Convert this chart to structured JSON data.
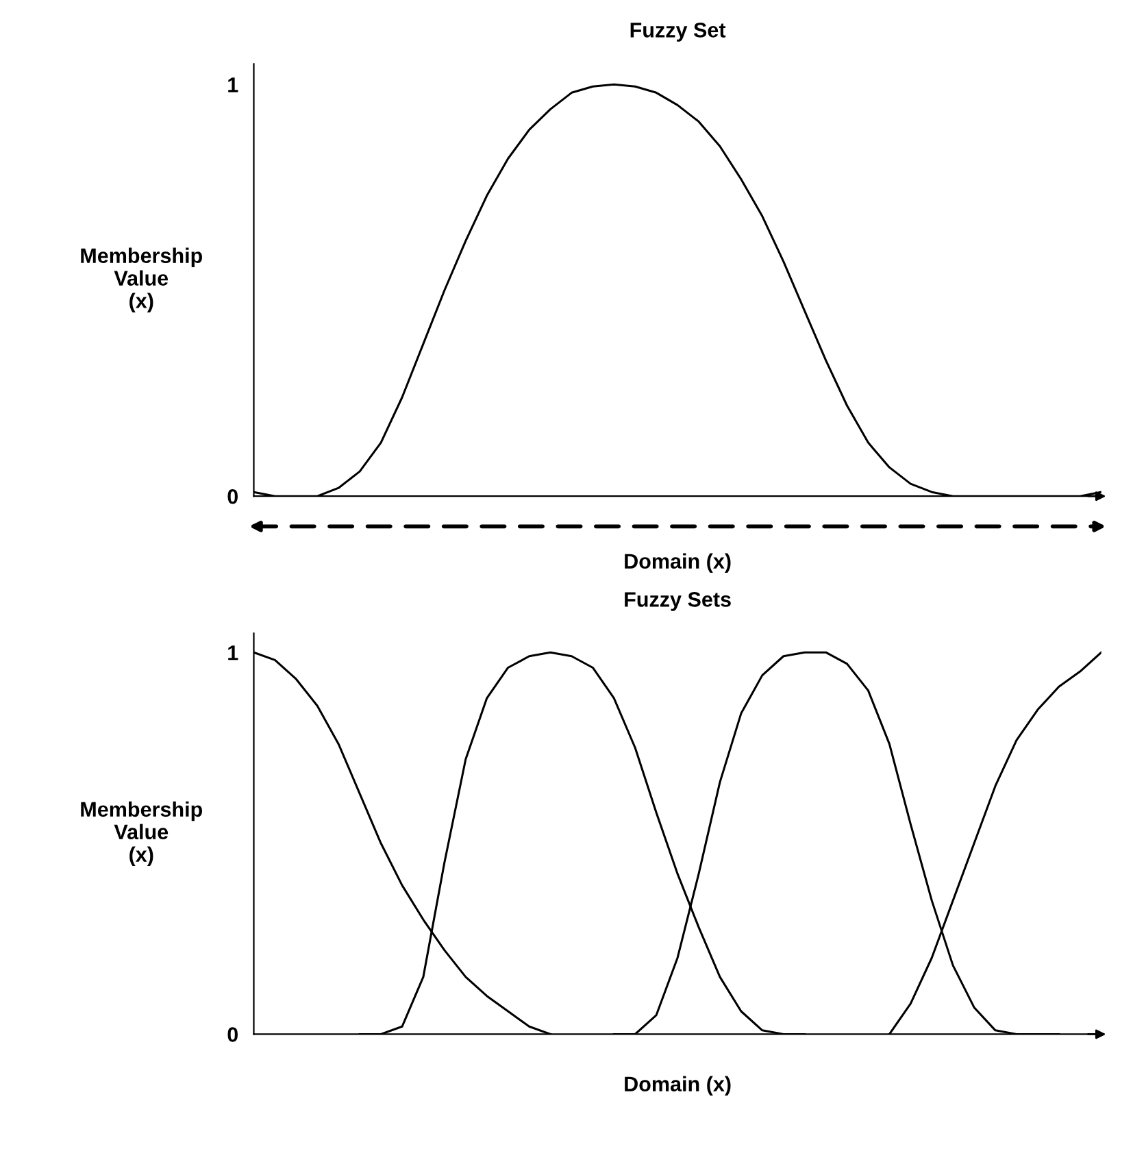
{
  "chart_data": [
    {
      "type": "line",
      "title": "Fuzzy Set",
      "xlabel": "Domain (x)",
      "ylabel": "Membership\nValue\n(x)",
      "categories": [
        null,
        null,
        null,
        null,
        null,
        null,
        null,
        null,
        null,
        null,
        null,
        null,
        null,
        null,
        null,
        null,
        null,
        null,
        null,
        null,
        null,
        null,
        null,
        null,
        null,
        null,
        null,
        null,
        null,
        null,
        null,
        null,
        null,
        null,
        null,
        null,
        null,
        null,
        null,
        null,
        null
      ],
      "ylim": [
        0,
        1.05
      ],
      "yticks": [
        0,
        1
      ],
      "tick_labels": "y",
      "grid": false,
      "series": [
        {
          "color": "#000000",
          "values": [
            0.01,
            0,
            0,
            0,
            0.02,
            0.06,
            0.13,
            0.24,
            0.37,
            0.5,
            0.62,
            0.73,
            0.82,
            0.89,
            0.94,
            0.98,
            0.995,
            1,
            0.995,
            0.98,
            0.95,
            0.91,
            0.85,
            0.77,
            0.68,
            0.57,
            0.45,
            0.33,
            0.22,
            0.13,
            0.07,
            0.03,
            0.01,
            0,
            0,
            0,
            0,
            0,
            0,
            0,
            0.01
          ]
        }
      ]
    },
    {
      "type": "line",
      "title": "Fuzzy Sets",
      "xlabel": "Domain (x)",
      "ylabel": "Membership\nValue\n(x)",
      "categories": [
        null,
        null,
        null,
        null,
        null,
        null,
        null,
        null,
        null,
        null,
        null,
        null,
        null,
        null,
        null,
        null,
        null,
        null,
        null,
        null,
        null,
        null,
        null,
        null,
        null,
        null,
        null,
        null,
        null,
        null,
        null,
        null,
        null,
        null,
        null,
        null,
        null,
        null,
        null,
        null,
        null
      ],
      "ylim": [
        0,
        1.05
      ],
      "yticks": [
        0,
        1
      ],
      "tick_labels": "y",
      "grid": false,
      "series": [
        {
          "color": "#000000",
          "values": [
            1,
            0.98,
            0.93,
            0.86,
            0.76,
            0.63,
            0.5,
            0.39,
            0.3,
            0.22,
            0.15,
            0.1,
            0.06,
            0.02,
            0,
            null,
            null,
            null,
            null,
            null,
            null,
            null,
            null,
            null,
            null,
            null,
            null,
            null,
            null,
            null,
            null,
            null,
            null,
            null,
            null,
            null,
            null,
            null,
            null,
            null,
            null
          ]
        },
        {
          "color": "#000000",
          "values": [
            null,
            null,
            null,
            null,
            null,
            0,
            0,
            0.02,
            0.15,
            0.45,
            0.72,
            0.88,
            0.96,
            0.99,
            1,
            0.99,
            0.96,
            0.88,
            0.75,
            0.58,
            0.42,
            0.28,
            0.15,
            0.06,
            0.01,
            0,
            0,
            null,
            null,
            null,
            null,
            null,
            null,
            null,
            null,
            null,
            null,
            null,
            null,
            null,
            null
          ]
        },
        {
          "color": "#000000",
          "values": [
            null,
            null,
            null,
            null,
            null,
            null,
            null,
            null,
            null,
            null,
            null,
            null,
            null,
            null,
            null,
            null,
            null,
            0,
            0,
            0.05,
            0.2,
            0.42,
            0.66,
            0.84,
            0.94,
            0.99,
            1,
            1,
            0.97,
            0.9,
            0.76,
            0.55,
            0.35,
            0.18,
            0.07,
            0.01,
            0,
            0,
            0,
            null,
            null
          ]
        },
        {
          "color": "#000000",
          "values": [
            null,
            null,
            null,
            null,
            null,
            null,
            null,
            null,
            null,
            null,
            null,
            null,
            null,
            null,
            null,
            null,
            null,
            null,
            null,
            null,
            null,
            null,
            null,
            null,
            null,
            null,
            null,
            null,
            null,
            null,
            0,
            0.08,
            0.2,
            0.35,
            0.5,
            0.65,
            0.77,
            0.85,
            0.91,
            0.95,
            1
          ]
        }
      ]
    }
  ]
}
